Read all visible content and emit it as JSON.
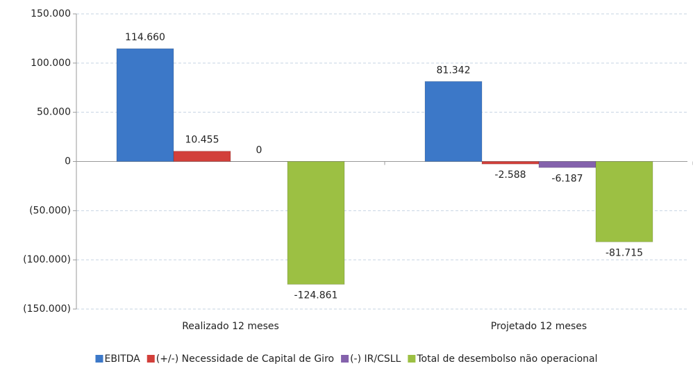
{
  "chart_data": {
    "type": "bar",
    "categories": [
      "Realizado 12 meses",
      "Projetado 12 meses"
    ],
    "series": [
      {
        "name": "EBITDA",
        "color": "#3c78c8",
        "values": [
          114660,
          81342
        ],
        "value_labels": [
          "114.660",
          "81.342"
        ]
      },
      {
        "name": "(+/-) Necessidade de Capital de Giro",
        "color": "#d23f3a",
        "values": [
          10455,
          -2588
        ],
        "value_labels": [
          "10.455",
          "-2.588"
        ]
      },
      {
        "name": "(-) IR/CSLL",
        "color": "#8462ac",
        "values": [
          0,
          -6187
        ],
        "value_labels": [
          "0",
          "-6.187"
        ]
      },
      {
        "name": "Total de desembolso não operacional",
        "color": "#9cc043",
        "values": [
          -124861,
          -81715
        ],
        "value_labels": [
          "-124.861",
          "-81.715"
        ]
      }
    ],
    "ylim": [
      -150000,
      150000
    ],
    "yticks": [
      {
        "value": -150000,
        "label": "(150.000)"
      },
      {
        "value": -100000,
        "label": "(100.000)"
      },
      {
        "value": -50000,
        "label": "(50.000)"
      },
      0,
      {
        "value": 50000,
        "label": "50.000"
      },
      {
        "value": 100000,
        "label": "100.000"
      },
      {
        "value": 150000,
        "label": "150.000"
      }
    ],
    "grid": true,
    "legend": "bottom"
  }
}
